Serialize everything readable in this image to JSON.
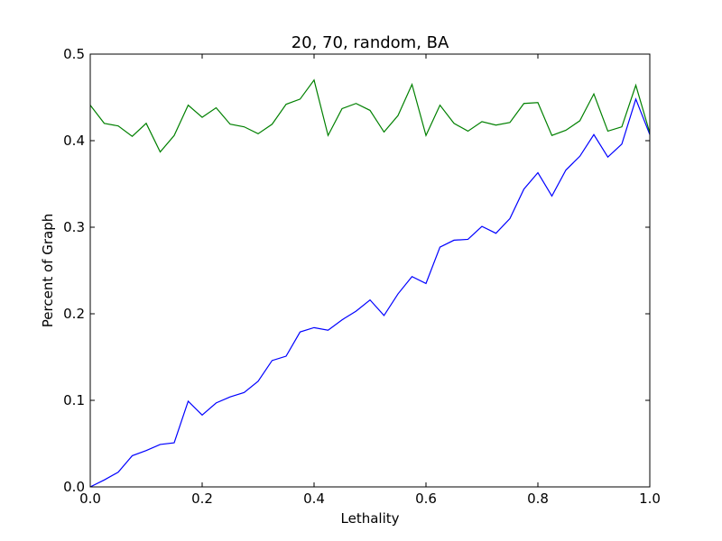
{
  "chart_data": {
    "type": "line",
    "title": "20, 70, random, BA",
    "xlabel": "Lethality",
    "ylabel": "Percent of Graph",
    "xlim": [
      0.0,
      1.0
    ],
    "ylim": [
      0.0,
      0.5
    ],
    "xticks": [
      "0.0",
      "0.2",
      "0.4",
      "0.6",
      "0.8",
      "1.0"
    ],
    "yticks": [
      "0.0",
      "0.1",
      "0.2",
      "0.3",
      "0.4",
      "0.5"
    ],
    "grid": false,
    "x": [
      0.0,
      0.025,
      0.05,
      0.075,
      0.1,
      0.125,
      0.15,
      0.175,
      0.2,
      0.225,
      0.25,
      0.275,
      0.3,
      0.325,
      0.35,
      0.375,
      0.4,
      0.425,
      0.45,
      0.475,
      0.5,
      0.525,
      0.55,
      0.575,
      0.6,
      0.625,
      0.65,
      0.675,
      0.7,
      0.725,
      0.75,
      0.775,
      0.8,
      0.825,
      0.85,
      0.875,
      0.9,
      0.925,
      0.95,
      0.975,
      1.0
    ],
    "series": [
      {
        "color": "#0000ff",
        "values": [
          0.0,
          0.008,
          0.017,
          0.036,
          0.042,
          0.049,
          0.051,
          0.099,
          0.083,
          0.097,
          0.104,
          0.109,
          0.122,
          0.146,
          0.151,
          0.179,
          0.184,
          0.181,
          0.193,
          0.203,
          0.216,
          0.198,
          0.223,
          0.243,
          0.235,
          0.277,
          0.285,
          0.286,
          0.301,
          0.293,
          0.31,
          0.344,
          0.363,
          0.336,
          0.366,
          0.382,
          0.407,
          0.381,
          0.396,
          0.448,
          0.407
        ]
      },
      {
        "color": "#008000",
        "values": [
          0.441,
          0.42,
          0.417,
          0.405,
          0.42,
          0.387,
          0.406,
          0.441,
          0.427,
          0.438,
          0.419,
          0.416,
          0.408,
          0.419,
          0.442,
          0.448,
          0.47,
          0.406,
          0.437,
          0.443,
          0.435,
          0.41,
          0.429,
          0.465,
          0.406,
          0.441,
          0.42,
          0.411,
          0.422,
          0.418,
          0.421,
          0.443,
          0.444,
          0.406,
          0.412,
          0.423,
          0.454,
          0.411,
          0.416,
          0.464,
          0.409
        ]
      }
    ]
  }
}
